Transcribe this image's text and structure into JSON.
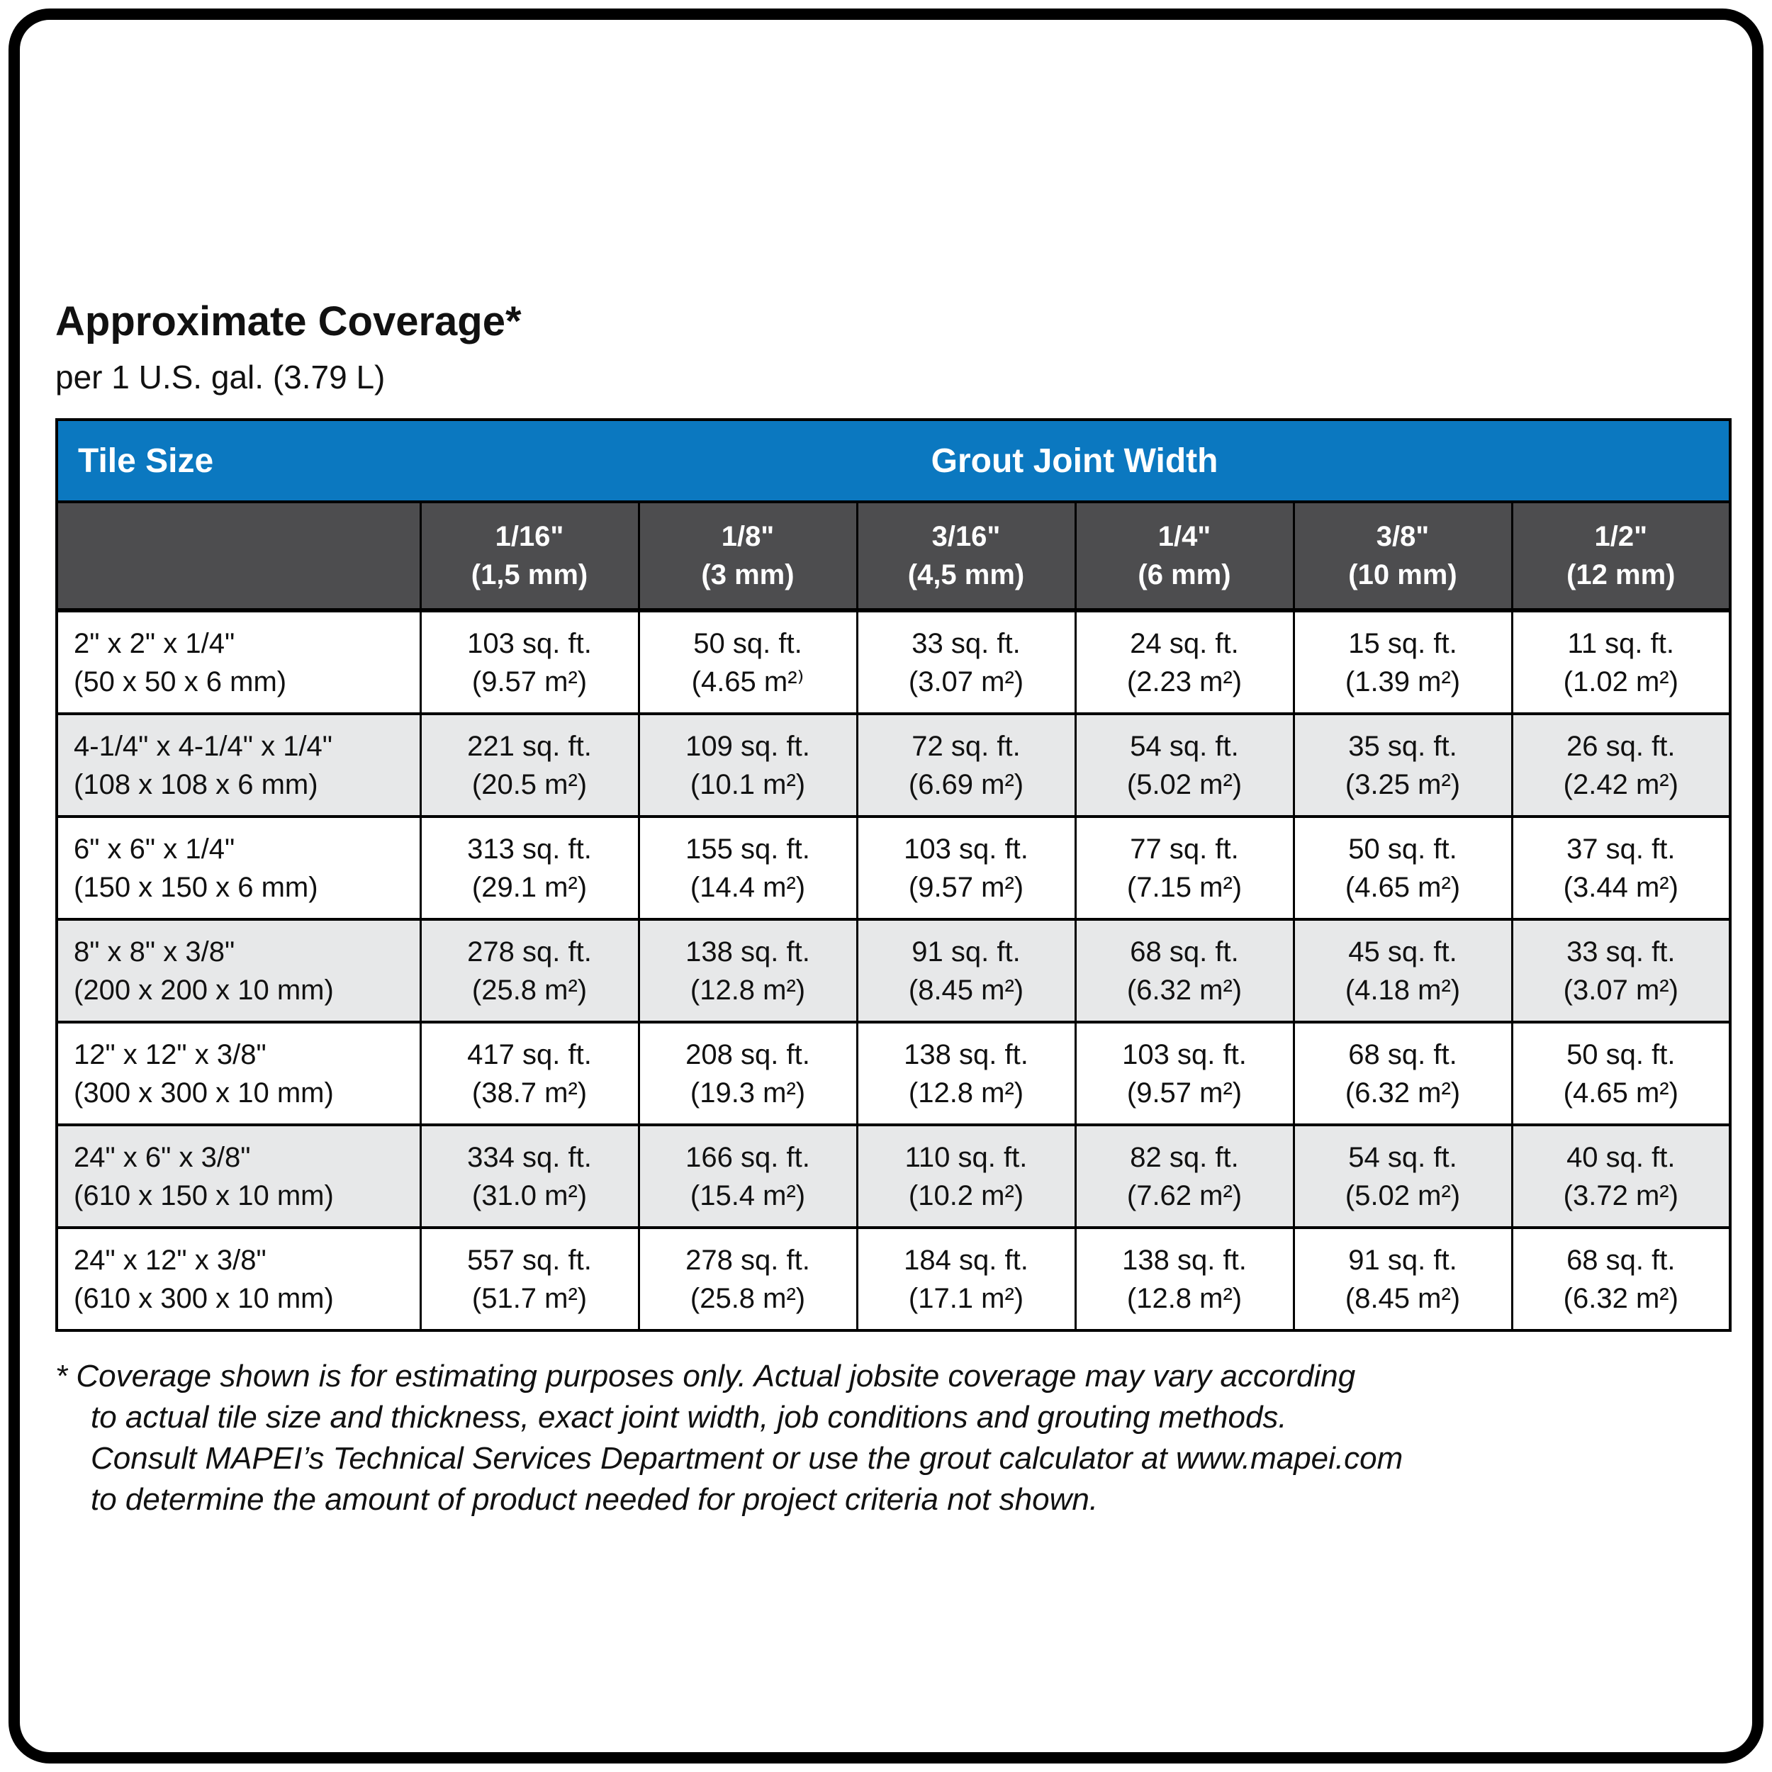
{
  "page": {
    "title": "Approximate Coverage*",
    "subtitle": "per 1 U.S. gal. (3.79 L)"
  },
  "colors": {
    "header_blue": "#0b78c0",
    "subheader_gray": "#4d4d4f",
    "row_alt_gray": "#e7e8e9",
    "border_black": "#000000",
    "text_black": "#111111"
  },
  "table": {
    "header": {
      "tile_size": "Tile Size",
      "grout_joint_width": "Grout Joint Width"
    },
    "columns": [
      {
        "line1": "1/16\"",
        "line2": "(1,5 mm)"
      },
      {
        "line1": "1/8\"",
        "line2": "(3 mm)"
      },
      {
        "line1": "3/16\"",
        "line2": "(4,5 mm)"
      },
      {
        "line1": "1/4\"",
        "line2": "(6 mm)"
      },
      {
        "line1": "3/8\"",
        "line2": "(10 mm)"
      },
      {
        "line1": "1/2\"",
        "line2": "(12 mm)"
      }
    ],
    "rows": [
      {
        "tile": {
          "line1": "2\" x 2\" x 1/4\"",
          "line2": "(50 x 50 x 6 mm)"
        },
        "cells": [
          {
            "ft": "103 sq. ft.",
            "m2": "(9.57 m²)"
          },
          {
            "ft": "50 sq. ft.",
            "m2": "(4.65 m²⁾"
          },
          {
            "ft": "33 sq. ft.",
            "m2": "(3.07 m²)"
          },
          {
            "ft": "24 sq. ft.",
            "m2": "(2.23 m²)"
          },
          {
            "ft": "15 sq. ft.",
            "m2": "(1.39 m²)"
          },
          {
            "ft": "11 sq. ft.",
            "m2": "(1.02 m²)"
          }
        ]
      },
      {
        "tile": {
          "line1": "4-1/4\" x 4-1/4\" x 1/4\"",
          "line2": "(108 x 108 x 6 mm)"
        },
        "cells": [
          {
            "ft": "221 sq. ft.",
            "m2": "(20.5 m²)"
          },
          {
            "ft": "109 sq. ft.",
            "m2": "(10.1 m²)"
          },
          {
            "ft": "72 sq. ft.",
            "m2": "(6.69 m²)"
          },
          {
            "ft": "54 sq. ft.",
            "m2": "(5.02 m²)"
          },
          {
            "ft": "35 sq. ft.",
            "m2": "(3.25 m²)"
          },
          {
            "ft": "26 sq. ft.",
            "m2": "(2.42 m²)"
          }
        ]
      },
      {
        "tile": {
          "line1": "6\" x 6\" x 1/4\"",
          "line2": "(150 x 150 x 6 mm)"
        },
        "cells": [
          {
            "ft": "313 sq. ft.",
            "m2": "(29.1 m²)"
          },
          {
            "ft": "155 sq. ft.",
            "m2": "(14.4 m²)"
          },
          {
            "ft": "103 sq. ft.",
            "m2": "(9.57 m²)"
          },
          {
            "ft": "77 sq. ft.",
            "m2": "(7.15 m²)"
          },
          {
            "ft": "50 sq. ft.",
            "m2": "(4.65 m²)"
          },
          {
            "ft": "37 sq. ft.",
            "m2": "(3.44 m²)"
          }
        ]
      },
      {
        "tile": {
          "line1": "8\" x 8\" x 3/8\"",
          "line2": "(200 x 200 x 10 mm)"
        },
        "cells": [
          {
            "ft": "278 sq. ft.",
            "m2": "(25.8 m²)"
          },
          {
            "ft": "138 sq. ft.",
            "m2": "(12.8 m²)"
          },
          {
            "ft": "91 sq. ft.",
            "m2": "(8.45 m²)"
          },
          {
            "ft": "68 sq. ft.",
            "m2": "(6.32 m²)"
          },
          {
            "ft": "45 sq. ft.",
            "m2": "(4.18 m²)"
          },
          {
            "ft": "33 sq. ft.",
            "m2": "(3.07 m²)"
          }
        ]
      },
      {
        "tile": {
          "line1": "12\" x 12\" x 3/8\"",
          "line2": "(300 x 300 x 10 mm)"
        },
        "cells": [
          {
            "ft": "417 sq. ft.",
            "m2": "(38.7 m²)"
          },
          {
            "ft": "208 sq. ft.",
            "m2": "(19.3 m²)"
          },
          {
            "ft": "138 sq. ft.",
            "m2": "(12.8 m²)"
          },
          {
            "ft": "103 sq. ft.",
            "m2": "(9.57 m²)"
          },
          {
            "ft": "68 sq. ft.",
            "m2": "(6.32 m²)"
          },
          {
            "ft": "50 sq. ft.",
            "m2": "(4.65 m²)"
          }
        ]
      },
      {
        "tile": {
          "line1": "24\" x 6\" x 3/8\"",
          "line2": "(610 x 150 x 10 mm)"
        },
        "cells": [
          {
            "ft": "334 sq. ft.",
            "m2": "(31.0 m²)"
          },
          {
            "ft": "166 sq. ft.",
            "m2": "(15.4 m²)"
          },
          {
            "ft": "110 sq. ft.",
            "m2": "(10.2 m²)"
          },
          {
            "ft": "82 sq. ft.",
            "m2": "(7.62 m²)"
          },
          {
            "ft": "54 sq. ft.",
            "m2": "(5.02 m²)"
          },
          {
            "ft": "40 sq. ft.",
            "m2": "(3.72 m²)"
          }
        ]
      },
      {
        "tile": {
          "line1": "24\" x 12\" x 3/8\"",
          "line2": "(610 x 300 x 10 mm)"
        },
        "cells": [
          {
            "ft": "557 sq. ft.",
            "m2": "(51.7 m²)"
          },
          {
            "ft": "278 sq. ft.",
            "m2": "(25.8 m²)"
          },
          {
            "ft": "184 sq. ft.",
            "m2": "(17.1 m²)"
          },
          {
            "ft": "138 sq. ft.",
            "m2": "(12.8 m²)"
          },
          {
            "ft": "91 sq. ft.",
            "m2": "(8.45 m²)"
          },
          {
            "ft": "68 sq. ft.",
            "m2": "(6.32 m²)"
          }
        ]
      }
    ]
  },
  "footnote": {
    "lines": [
      "* Coverage shown is for estimating purposes only. Actual jobsite coverage may vary according",
      "to actual tile size and thickness, exact joint width, job conditions and grouting methods.",
      "Consult MAPEI’s Technical Services Department or use the grout calculator at www.mapei.com",
      "to determine the amount of product needed for project criteria not shown."
    ]
  }
}
